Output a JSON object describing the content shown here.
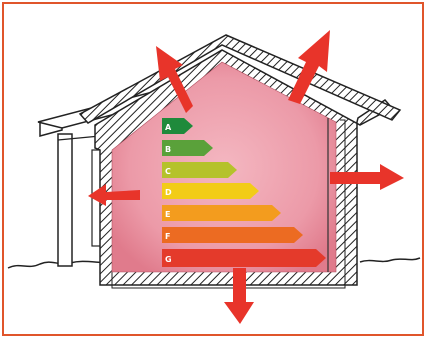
{
  "illustration": {
    "subject": "house-heat-loss-illustration",
    "colors": {
      "frame": "#e0552b",
      "heat_fill": "#f0a8b5",
      "arrow": "#e8342a",
      "wall_line": "#222222"
    },
    "energy_rating": {
      "classes": [
        {
          "label": "A",
          "color": "#1f8a3b"
        },
        {
          "label": "B",
          "color": "#5aa13a"
        },
        {
          "label": "C",
          "color": "#b5c22b"
        },
        {
          "label": "D",
          "color": "#f2cc17"
        },
        {
          "label": "E",
          "color": "#f39c1e"
        },
        {
          "label": "F",
          "color": "#ec6b22"
        },
        {
          "label": "G",
          "color": "#e43a2b"
        }
      ]
    }
  }
}
